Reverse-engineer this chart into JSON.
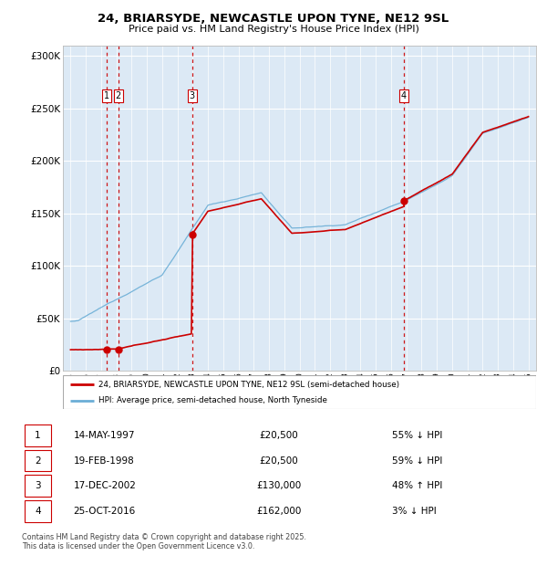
{
  "title_line1": "24, BRIARSYDE, NEWCASTLE UPON TYNE, NE12 9SL",
  "title_line2": "Price paid vs. HM Land Registry's House Price Index (HPI)",
  "background_color": "#dce9f5",
  "transactions": [
    {
      "label": "1",
      "date_x": 1997.37,
      "price": 20500
    },
    {
      "label": "2",
      "date_x": 1998.13,
      "price": 20500
    },
    {
      "label": "3",
      "date_x": 2002.96,
      "price": 130000
    },
    {
      "label": "4",
      "date_x": 2016.82,
      "price": 162000
    }
  ],
  "legend_label_red": "24, BRIARSYDE, NEWCASTLE UPON TYNE, NE12 9SL (semi-detached house)",
  "legend_label_blue": "HPI: Average price, semi-detached house, North Tyneside",
  "footnote": "Contains HM Land Registry data © Crown copyright and database right 2025.\nThis data is licensed under the Open Government Licence v3.0.",
  "table_rows": [
    [
      "1",
      "14-MAY-1997",
      "£20,500",
      "55% ↓ HPI"
    ],
    [
      "2",
      "19-FEB-1998",
      "£20,500",
      "59% ↓ HPI"
    ],
    [
      "3",
      "17-DEC-2002",
      "£130,000",
      "48% ↑ HPI"
    ],
    [
      "4",
      "25-OCT-2016",
      "£162,000",
      "3% ↓ HPI"
    ]
  ],
  "ylim": [
    0,
    310000
  ],
  "xlim_start": 1994.5,
  "xlim_end": 2025.5,
  "yticks": [
    0,
    50000,
    100000,
    150000,
    200000,
    250000,
    300000
  ],
  "ylabels": [
    "£0",
    "£50K",
    "£100K",
    "£150K",
    "£200K",
    "£250K",
    "£300K"
  ]
}
